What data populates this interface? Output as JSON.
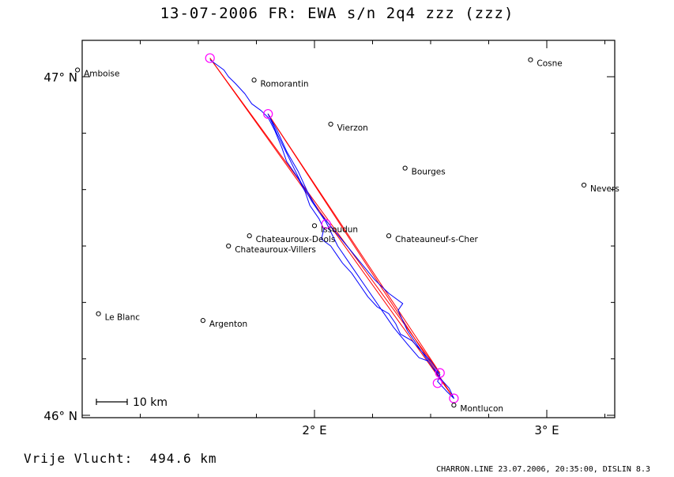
{
  "title": "13-07-2006   FR: EWA s/n 2q4   zzz (zzz)",
  "axes": {
    "lat_ticks": [
      {
        "value": 47.0,
        "label": "47° N"
      },
      {
        "value": 46.0,
        "label": "46° N"
      }
    ],
    "lon_ticks": [
      {
        "value": 2.0,
        "label": "2° E"
      },
      {
        "value": 3.0,
        "label": "3° E"
      }
    ]
  },
  "cities": [
    {
      "name": "Amboise",
      "lon": 0.98,
      "lat": 47.02
    },
    {
      "name": "Romorantin",
      "lon": 1.74,
      "lat": 46.99
    },
    {
      "name": "Vierzon",
      "lon": 2.07,
      "lat": 46.86
    },
    {
      "name": "Bourges",
      "lon": 2.39,
      "lat": 46.73
    },
    {
      "name": "Cosne",
      "lon": 2.93,
      "lat": 47.05
    },
    {
      "name": "Nevers",
      "lon": 3.16,
      "lat": 46.68
    },
    {
      "name": "Issoudun",
      "lon": 2.0,
      "lat": 46.56
    },
    {
      "name": "Chateauroux-Deols",
      "lon": 1.72,
      "lat": 46.53
    },
    {
      "name": "Chateauroux-Villers",
      "lon": 1.63,
      "lat": 46.5
    },
    {
      "name": "Chateauneuf-s-Cher",
      "lon": 2.32,
      "lat": 46.53
    },
    {
      "name": "Le Blanc",
      "lon": 1.07,
      "lat": 46.3
    },
    {
      "name": "Argenton",
      "lon": 1.52,
      "lat": 46.28
    },
    {
      "name": "Montlucon",
      "lon": 2.6,
      "lat": 46.03
    }
  ],
  "turnpoints": [
    {
      "lon": 1.55,
      "lat": 47.055
    },
    {
      "lon": 1.8,
      "lat": 46.89
    },
    {
      "lon": 2.05,
      "lat": 46.565
    },
    {
      "lon": 2.54,
      "lat": 46.125
    },
    {
      "lon": 2.53,
      "lat": 46.095
    },
    {
      "lon": 2.6,
      "lat": 46.05
    }
  ],
  "task_route": [
    {
      "lon": 1.55,
      "lat": 47.055
    },
    {
      "lon": 2.6,
      "lat": 46.05
    },
    {
      "lon": 1.8,
      "lat": 46.89
    },
    {
      "lon": 2.54,
      "lat": 46.125
    },
    {
      "lon": 1.55,
      "lat": 47.055
    }
  ],
  "flight_track": [
    {
      "lon": 1.55,
      "lat": 47.05
    },
    {
      "lon": 1.57,
      "lat": 47.04
    },
    {
      "lon": 1.61,
      "lat": 47.02
    },
    {
      "lon": 1.63,
      "lat": 47.0
    },
    {
      "lon": 1.66,
      "lat": 46.98
    },
    {
      "lon": 1.7,
      "lat": 46.95
    },
    {
      "lon": 1.73,
      "lat": 46.92
    },
    {
      "lon": 1.77,
      "lat": 46.9
    },
    {
      "lon": 1.8,
      "lat": 46.88
    },
    {
      "lon": 1.83,
      "lat": 46.84
    },
    {
      "lon": 1.86,
      "lat": 46.79
    },
    {
      "lon": 1.88,
      "lat": 46.75
    },
    {
      "lon": 1.9,
      "lat": 46.73
    },
    {
      "lon": 1.93,
      "lat": 46.7
    },
    {
      "lon": 1.96,
      "lat": 46.66
    },
    {
      "lon": 1.98,
      "lat": 46.62
    },
    {
      "lon": 2.02,
      "lat": 46.58
    },
    {
      "lon": 2.04,
      "lat": 46.55
    },
    {
      "lon": 2.03,
      "lat": 46.52
    },
    {
      "lon": 2.07,
      "lat": 46.5
    },
    {
      "lon": 2.1,
      "lat": 46.47
    },
    {
      "lon": 2.12,
      "lat": 46.45
    },
    {
      "lon": 2.16,
      "lat": 46.42
    },
    {
      "lon": 2.2,
      "lat": 46.38
    },
    {
      "lon": 2.23,
      "lat": 46.35
    },
    {
      "lon": 2.27,
      "lat": 46.32
    },
    {
      "lon": 2.32,
      "lat": 46.3
    },
    {
      "lon": 2.35,
      "lat": 46.27
    },
    {
      "lon": 2.37,
      "lat": 46.24
    },
    {
      "lon": 2.42,
      "lat": 46.22
    },
    {
      "lon": 2.46,
      "lat": 46.19
    },
    {
      "lon": 2.5,
      "lat": 46.16
    },
    {
      "lon": 2.54,
      "lat": 46.12
    },
    {
      "lon": 2.53,
      "lat": 46.1
    },
    {
      "lon": 2.57,
      "lat": 46.07
    },
    {
      "lon": 2.6,
      "lat": 46.05
    },
    {
      "lon": 2.58,
      "lat": 46.08
    },
    {
      "lon": 2.54,
      "lat": 46.11
    },
    {
      "lon": 2.5,
      "lat": 46.15
    },
    {
      "lon": 2.45,
      "lat": 46.2
    },
    {
      "lon": 2.4,
      "lat": 46.25
    },
    {
      "lon": 2.36,
      "lat": 46.31
    },
    {
      "lon": 2.38,
      "lat": 46.33
    },
    {
      "lon": 2.32,
      "lat": 46.36
    },
    {
      "lon": 2.26,
      "lat": 46.4
    },
    {
      "lon": 2.2,
      "lat": 46.45
    },
    {
      "lon": 2.14,
      "lat": 46.5
    },
    {
      "lon": 2.08,
      "lat": 46.55
    },
    {
      "lon": 2.02,
      "lat": 46.6
    },
    {
      "lon": 1.97,
      "lat": 46.66
    },
    {
      "lon": 1.93,
      "lat": 46.72
    },
    {
      "lon": 1.88,
      "lat": 46.78
    },
    {
      "lon": 1.84,
      "lat": 46.84
    },
    {
      "lon": 1.8,
      "lat": 46.89
    },
    {
      "lon": 1.84,
      "lat": 46.83
    },
    {
      "lon": 1.89,
      "lat": 46.76
    },
    {
      "lon": 1.94,
      "lat": 46.69
    },
    {
      "lon": 1.99,
      "lat": 46.63
    },
    {
      "lon": 2.05,
      "lat": 46.57
    },
    {
      "lon": 2.1,
      "lat": 46.5
    },
    {
      "lon": 2.16,
      "lat": 46.44
    },
    {
      "lon": 2.23,
      "lat": 46.37
    },
    {
      "lon": 2.29,
      "lat": 46.31
    },
    {
      "lon": 2.34,
      "lat": 46.26
    },
    {
      "lon": 2.4,
      "lat": 46.21
    },
    {
      "lon": 2.45,
      "lat": 46.17
    },
    {
      "lon": 2.49,
      "lat": 46.16
    },
    {
      "lon": 2.51,
      "lat": 46.14
    },
    {
      "lon": 2.54,
      "lat": 46.12
    }
  ],
  "scale_bar": {
    "label": "10 km"
  },
  "stats": {
    "label": "Vrije Vlucht:",
    "value": "494.6 km"
  },
  "footer": "CHARRON.LINE 23.07.2006, 20:35:00, DISLIN 8.3",
  "colors": {
    "track": "#0000ff",
    "task": "#ff0000",
    "turnpoint": "#ff00ff",
    "frame": "#000000"
  }
}
